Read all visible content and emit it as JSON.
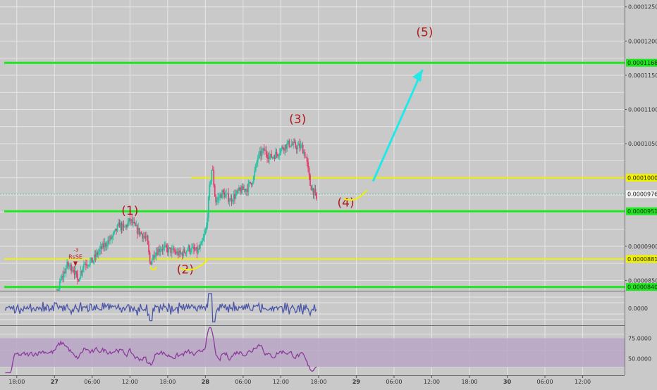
{
  "chart_data": {
    "type": "candlestick",
    "title": "",
    "xlabel": "",
    "ylabel": "",
    "grid": true,
    "colors": {
      "background": "#c9c9c9",
      "grid": "#e6e6e6",
      "up_candle": "#27c4a4",
      "down_candle": "#e0406e",
      "support_resistance": "#1ee81e",
      "channel": "#f0f000",
      "wave_label": "#b01a1a",
      "projection_arrow": "#22e8e8",
      "cci_line": "#4a55a8",
      "rsi_line": "#8c3a9c",
      "rsi_band": "#b9a6c6"
    },
    "main_panel": {
      "ylim": [
        8.35e-05,
        0.000126
      ],
      "y_ticks": [
        {
          "value": 0.000125,
          "label": "0.00012500"
        },
        {
          "value": 0.00012,
          "label": "0.00012000"
        },
        {
          "value": 0.000115,
          "label": "0.00011500"
        },
        {
          "value": 0.00011,
          "label": "0.00011000"
        },
        {
          "value": 0.000105,
          "label": "0.00010500"
        },
        {
          "value": 9e-05,
          "label": "0.00009000"
        },
        {
          "value": 8.5e-05,
          "label": "0.00008500"
        }
      ],
      "levels": [
        {
          "name": "resistance",
          "value": 0.00011682,
          "label": "0.00011682",
          "color": "#1ee81e",
          "x_start": 0
        },
        {
          "name": "channel-top",
          "value": 0.00010002,
          "label": "0.00010002",
          "color": "#f0f000",
          "x_start": 44.5
        },
        {
          "name": "support-high",
          "value": 9.512e-05,
          "label": "0.00009512",
          "color": "#1ee81e",
          "x_start": 0
        },
        {
          "name": "channel-bottom",
          "value": 8.815e-05,
          "label": "0.00008815",
          "color": "#f0f000",
          "x_start": 0
        },
        {
          "name": "support-low",
          "value": 8.405e-05,
          "label": "0.00008405",
          "color": "#1ee81e",
          "x_start": 0
        }
      ],
      "current_price": {
        "value": 9.763e-05,
        "label": "0.00009763"
      },
      "waves": [
        {
          "label": "(1)",
          "x": 30.0,
          "y": 9.46e-05
        },
        {
          "label": "(2)",
          "x": 43.2,
          "y": 8.6e-05
        },
        {
          "label": "(3)",
          "x": 70.0,
          "y": 0.000108
        },
        {
          "label": "(4)",
          "x": 81.5,
          "y": 9.58e-05
        },
        {
          "label": "(5)",
          "x": 100.3,
          "y": 0.0001207
        }
      ],
      "signal": {
        "label": "RsSE",
        "marker": "-3",
        "x": 17.0,
        "y": 8.82e-05
      },
      "projection": {
        "path": [
          [
            88.0,
            9.95e-05
          ],
          [
            97.0,
            0.000113
          ]
        ],
        "arrow_to": [
          99.8,
          0.0001158
        ]
      },
      "wave4_curve": {
        "from": [
          81.0,
          9.7e-05
        ],
        "to": [
          86.5,
          9.82e-05
        ]
      },
      "wave2_curve": {
        "from": [
          42.0,
          8.68e-05
        ],
        "to": [
          48.5,
          8.8e-05
        ]
      },
      "wave1_pullback_curve": {
        "from": [
          34.8,
          8.7e-05
        ],
        "to": [
          36.4,
          8.7e-05
        ]
      }
    },
    "time_axis": {
      "xlim": [
        -1,
        148
      ],
      "ticks": [
        {
          "x": 3,
          "label": "18:00"
        },
        {
          "x": 12,
          "label": "27"
        },
        {
          "x": 21,
          "label": "06:00"
        },
        {
          "x": 30,
          "label": "12:00"
        },
        {
          "x": 39,
          "label": "18:00"
        },
        {
          "x": 48,
          "label": "28"
        },
        {
          "x": 57,
          "label": "06:00"
        },
        {
          "x": 66,
          "label": "12:00"
        },
        {
          "x": 75,
          "label": "18:00"
        },
        {
          "x": 84,
          "label": "29"
        },
        {
          "x": 93,
          "label": "06:00"
        },
        {
          "x": 102,
          "label": "12:00"
        },
        {
          "x": 111,
          "label": "18:00"
        },
        {
          "x": 120,
          "label": "30"
        },
        {
          "x": 129,
          "label": "06:00"
        },
        {
          "x": 138,
          "label": "12:00"
        }
      ]
    },
    "price_path": [
      [
        0,
        7.9e-05
      ],
      [
        3,
        7.9e-05
      ],
      [
        6,
        7.87e-05
      ],
      [
        8,
        7.95e-05
      ],
      [
        10,
        8.08e-05
      ],
      [
        12,
        8.15e-05
      ],
      [
        13.5,
        8.5e-05
      ],
      [
        15,
        8.72e-05
      ],
      [
        16.5,
        8.68e-05
      ],
      [
        17.5,
        8.5e-05
      ],
      [
        19,
        8.75e-05
      ],
      [
        21,
        8.78e-05
      ],
      [
        22.5,
        8.92e-05
      ],
      [
        24,
        9.02e-05
      ],
      [
        26,
        9.15e-05
      ],
      [
        27.5,
        9.32e-05
      ],
      [
        28.5,
        9.25e-05
      ],
      [
        30,
        9.38e-05
      ],
      [
        31.5,
        9.25e-05
      ],
      [
        33,
        9.17e-05
      ],
      [
        34,
        9.1e-05
      ],
      [
        34.8,
        8.75e-05
      ],
      [
        35.8,
        8.9e-05
      ],
      [
        37.5,
        8.98e-05
      ],
      [
        40,
        8.93e-05
      ],
      [
        42,
        8.88e-05
      ],
      [
        44,
        8.97e-05
      ],
      [
        46,
        8.92e-05
      ],
      [
        47,
        9e-05
      ],
      [
        48.2,
        9.25e-05
      ],
      [
        49,
        9.85e-05
      ],
      [
        49.6,
        0.0001018
      ],
      [
        50.4,
        9.65e-05
      ],
      [
        52,
        9.78e-05
      ],
      [
        54,
        9.68e-05
      ],
      [
        56,
        9.8e-05
      ],
      [
        58,
        9.85e-05
      ],
      [
        59.5,
        0.0001
      ],
      [
        60.5,
        0.000103
      ],
      [
        62,
        0.000104
      ],
      [
        63.5,
        0.000103
      ],
      [
        65,
        0.0001035
      ],
      [
        66.5,
        0.0001045
      ],
      [
        68,
        0.000105
      ],
      [
        69.5,
        0.0001046
      ],
      [
        71,
        0.0001045
      ],
      [
        72,
        0.000103
      ],
      [
        73,
        9.9e-05
      ],
      [
        74,
        9.78e-05
      ],
      [
        74.5,
        9.68e-05
      ]
    ],
    "cci_panel": {
      "y_ticks": [
        {
          "value": 0,
          "label": "0.0000"
        }
      ],
      "ylim": [
        -300,
        300
      ]
    },
    "rsi_panel": {
      "y_ticks": [
        {
          "value": 75,
          "label": "75.0000"
        },
        {
          "value": 50,
          "label": "50.0000"
        }
      ],
      "ylim": [
        30,
        90
      ],
      "band": [
        40,
        75
      ]
    }
  }
}
